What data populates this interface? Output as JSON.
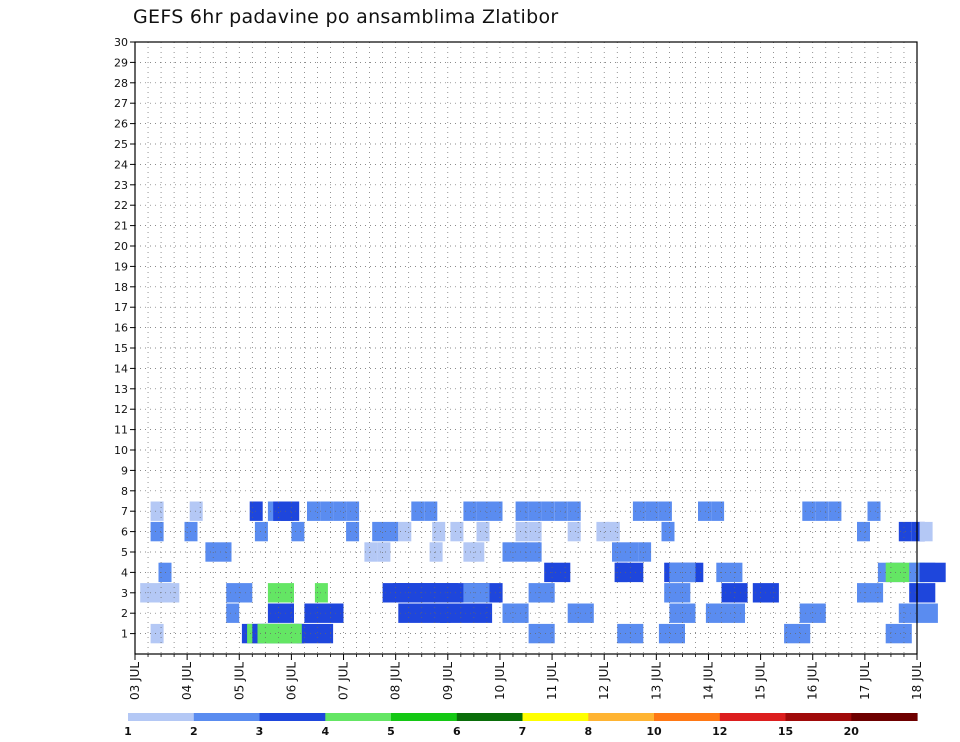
{
  "title": "GEFS 6hr padavine po ansamblima Zlatibor",
  "chart_data": {
    "type": "heatmap",
    "title": "GEFS 6hr padavine po ansamblima Zlatibor",
    "x_labels": [
      "03 JUL",
      "04 JUL",
      "05 JUL",
      "06 JUL",
      "07 JUL",
      "08 JUL",
      "09 JUL",
      "10 JUL",
      "11 JUL",
      "12 JUL",
      "13 JUL",
      "14 JUL",
      "15 JUL",
      "16 JUL",
      "17 JUL",
      "18 JUL"
    ],
    "y_labels": [
      "1",
      "2",
      "3",
      "4",
      "5",
      "6",
      "7",
      "8",
      "9",
      "10",
      "11",
      "12",
      "13",
      "14",
      "15",
      "16",
      "17",
      "18",
      "19",
      "20",
      "21",
      "22",
      "23",
      "24",
      "25",
      "26",
      "27",
      "28",
      "29",
      "30"
    ],
    "xlim_days": [
      3,
      18
    ],
    "ylim": [
      0,
      30
    ],
    "grid": true,
    "legend_position": "bottom",
    "colorbar": {
      "tick_labels": [
        "1",
        "2",
        "3",
        "4",
        "5",
        "6",
        "7",
        "8",
        "10",
        "12",
        "15",
        "20"
      ],
      "colors": [
        "#b4c8f5",
        "#5a8cf0",
        "#1e46dc",
        "#64e664",
        "#14c814",
        "#0a6e0a",
        "#ffff00",
        "#ffb432",
        "#ff7814",
        "#dc1e1e",
        "#a00a0a",
        "#6e0000"
      ]
    },
    "cells": [
      [
        1,
        3.3,
        1,
        0
      ],
      [
        1,
        5.05,
        3,
        6
      ],
      [
        1,
        5.15,
        4,
        3
      ],
      [
        1,
        5.25,
        3,
        3
      ],
      [
        1,
        5.35,
        4,
        2
      ],
      [
        1,
        5.45,
        4,
        2
      ],
      [
        1,
        10.55,
        2,
        1
      ],
      [
        1,
        12.25,
        2,
        1
      ],
      [
        1,
        13.05,
        2,
        1
      ],
      [
        1,
        17.4,
        2,
        1
      ],
      [
        1,
        15.45,
        2,
        1
      ],
      [
        2,
        4.75,
        2,
        0
      ],
      [
        2,
        5.55,
        3,
        1
      ],
      [
        2,
        6.25,
        3,
        2
      ],
      [
        2,
        8.05,
        3,
        3
      ],
      [
        2,
        8.85,
        3,
        3
      ],
      [
        2,
        10.05,
        2,
        1
      ],
      [
        2,
        11.3,
        2,
        1
      ],
      [
        2,
        13.25,
        2,
        1
      ],
      [
        2,
        15.75,
        2,
        1
      ],
      [
        2,
        13.95,
        2,
        2
      ],
      [
        2,
        17.65,
        2,
        2
      ],
      [
        3,
        3.1,
        1,
        2
      ],
      [
        3,
        3.45,
        1,
        0
      ],
      [
        3,
        4.75,
        2,
        1
      ],
      [
        3,
        5.55,
        4,
        1
      ],
      [
        3,
        6.45,
        4,
        0
      ],
      [
        3,
        7.75,
        3,
        1
      ],
      [
        3,
        7.95,
        3,
        4
      ],
      [
        3,
        8.05,
        3,
        7
      ],
      [
        3,
        9.3,
        2,
        1
      ],
      [
        3,
        10.55,
        2,
        1
      ],
      [
        3,
        13.15,
        2,
        1
      ],
      [
        3,
        14.25,
        3,
        1
      ],
      [
        3,
        14.85,
        3,
        1
      ],
      [
        3,
        16.85,
        2,
        1
      ],
      [
        3,
        17.85,
        3,
        1
      ],
      [
        4,
        3.45,
        2,
        0
      ],
      [
        4,
        10.85,
        3,
        1
      ],
      [
        4,
        12.2,
        3,
        0
      ],
      [
        4,
        12.25,
        3,
        1
      ],
      [
        4,
        13.15,
        3,
        2
      ],
      [
        4,
        13.25,
        2,
        1
      ],
      [
        4,
        14.15,
        2,
        1
      ],
      [
        4,
        17.25,
        2,
        1
      ],
      [
        4,
        17.4,
        4,
        2
      ],
      [
        4,
        17.85,
        2,
        1
      ],
      [
        4,
        18.05,
        3,
        1
      ],
      [
        5,
        4.35,
        2,
        1
      ],
      [
        5,
        7.4,
        1,
        0
      ],
      [
        5,
        7.65,
        1,
        0
      ],
      [
        5,
        8.65,
        1,
        0
      ],
      [
        5,
        9.3,
        1,
        0
      ],
      [
        5,
        9.45,
        1,
        0
      ],
      [
        5,
        10.05,
        2,
        2
      ],
      [
        5,
        12.15,
        2,
        1
      ],
      [
        5,
        12.65,
        2,
        0
      ],
      [
        6,
        3.3,
        2,
        0
      ],
      [
        6,
        3.95,
        2,
        0
      ],
      [
        6,
        5.3,
        2,
        0
      ],
      [
        6,
        6.0,
        2,
        0
      ],
      [
        6,
        7.05,
        2,
        0
      ],
      [
        6,
        7.55,
        2,
        1
      ],
      [
        6,
        8.05,
        1,
        0
      ],
      [
        6,
        8.7,
        1,
        0
      ],
      [
        6,
        9.05,
        1,
        0
      ],
      [
        6,
        9.55,
        1,
        0
      ],
      [
        6,
        10.3,
        1,
        0
      ],
      [
        6,
        10.55,
        1,
        0
      ],
      [
        6,
        11.3,
        1,
        0
      ],
      [
        6,
        11.85,
        1,
        0
      ],
      [
        6,
        12.05,
        1,
        0
      ],
      [
        6,
        13.1,
        2,
        0
      ],
      [
        6,
        16.85,
        2,
        0
      ],
      [
        6,
        17.65,
        3,
        0
      ],
      [
        6,
        17.9,
        3,
        0
      ],
      [
        6,
        18.05,
        1,
        0
      ],
      [
        7,
        3.3,
        1,
        0
      ],
      [
        7,
        4.05,
        1,
        0
      ],
      [
        7,
        5.2,
        3,
        0
      ],
      [
        7,
        5.55,
        2,
        0
      ],
      [
        7,
        5.65,
        3,
        0
      ],
      [
        7,
        5.8,
        3,
        0
      ],
      [
        7,
        5.9,
        3,
        0
      ],
      [
        7,
        6.3,
        2,
        0
      ],
      [
        7,
        6.55,
        2,
        0
      ],
      [
        7,
        6.8,
        2,
        0
      ],
      [
        7,
        7.05,
        2,
        0
      ],
      [
        7,
        8.3,
        2,
        0
      ],
      [
        7,
        8.55,
        2,
        0
      ],
      [
        7,
        9.3,
        2,
        0
      ],
      [
        7,
        9.55,
        2,
        0
      ],
      [
        7,
        9.8,
        2,
        0
      ],
      [
        7,
        10.3,
        2,
        0
      ],
      [
        7,
        10.55,
        2,
        0
      ],
      [
        7,
        10.8,
        2,
        0
      ],
      [
        7,
        11.05,
        2,
        0
      ],
      [
        7,
        11.3,
        2,
        0
      ],
      [
        7,
        12.55,
        2,
        0
      ],
      [
        7,
        12.8,
        2,
        0
      ],
      [
        7,
        13.05,
        2,
        0
      ],
      [
        7,
        13.8,
        2,
        0
      ],
      [
        7,
        14.05,
        2,
        0
      ],
      [
        7,
        15.8,
        2,
        0
      ],
      [
        7,
        16.05,
        2,
        0
      ],
      [
        7,
        16.3,
        2,
        0
      ],
      [
        7,
        17.05,
        2,
        0
      ]
    ]
  }
}
